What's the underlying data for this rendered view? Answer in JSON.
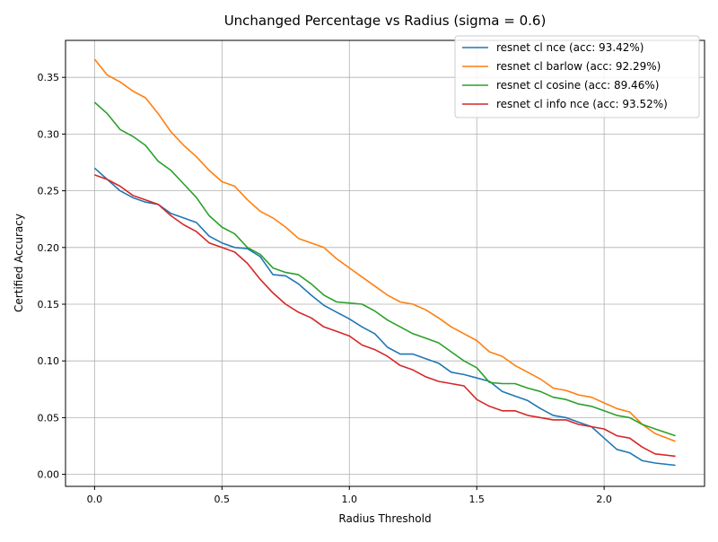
{
  "chart_data": {
    "type": "line",
    "title": "Unchanged Percentage vs Radius (sigma = 0.6)",
    "xlabel": "Radius Threshold",
    "ylabel": "Certified Accuracy",
    "xlim": [
      -0.114,
      2.394
    ],
    "ylim": [
      -0.0106,
      0.3826
    ],
    "xticks": [
      0.0,
      0.5,
      1.0,
      1.5,
      2.0
    ],
    "xtick_labels": [
      "0.0",
      "0.5",
      "1.0",
      "1.5",
      "2.0"
    ],
    "yticks": [
      0.0,
      0.05,
      0.1,
      0.15,
      0.2,
      0.25,
      0.3,
      0.35
    ],
    "ytick_labels": [
      "0.00",
      "0.05",
      "0.10",
      "0.15",
      "0.20",
      "0.25",
      "0.30",
      "0.35"
    ],
    "grid": true,
    "legend_position": "upper right",
    "series": [
      {
        "name": "resnet cl nce (acc: 93.42%)",
        "color": "#1f77b4",
        "x": [
          0.0,
          0.05,
          0.1,
          0.15,
          0.2,
          0.25,
          0.3,
          0.35,
          0.4,
          0.45,
          0.5,
          0.55,
          0.6,
          0.65,
          0.7,
          0.75,
          0.8,
          0.85,
          0.9,
          0.95,
          1.0,
          1.05,
          1.1,
          1.15,
          1.2,
          1.25,
          1.3,
          1.35,
          1.4,
          1.45,
          1.5,
          1.55,
          1.6,
          1.65,
          1.7,
          1.75,
          1.8,
          1.85,
          1.9,
          1.95,
          2.0,
          2.05,
          2.1,
          2.15,
          2.2,
          2.28
        ],
        "y": [
          0.27,
          0.26,
          0.25,
          0.244,
          0.24,
          0.238,
          0.23,
          0.226,
          0.222,
          0.21,
          0.204,
          0.2,
          0.199,
          0.192,
          0.176,
          0.175,
          0.168,
          0.158,
          0.149,
          0.143,
          0.137,
          0.13,
          0.124,
          0.112,
          0.106,
          0.106,
          0.102,
          0.098,
          0.09,
          0.088,
          0.085,
          0.082,
          0.073,
          0.069,
          0.065,
          0.058,
          0.052,
          0.05,
          0.046,
          0.042,
          0.032,
          0.022,
          0.019,
          0.012,
          0.01,
          0.008
        ]
      },
      {
        "name": "resnet cl barlow (acc: 92.29%)",
        "color": "#ff7f0e",
        "x": [
          0.0,
          0.05,
          0.1,
          0.15,
          0.2,
          0.25,
          0.3,
          0.35,
          0.4,
          0.45,
          0.5,
          0.55,
          0.6,
          0.65,
          0.7,
          0.75,
          0.8,
          0.85,
          0.9,
          0.95,
          1.0,
          1.05,
          1.1,
          1.15,
          1.2,
          1.25,
          1.3,
          1.35,
          1.4,
          1.45,
          1.5,
          1.55,
          1.6,
          1.65,
          1.7,
          1.75,
          1.8,
          1.85,
          1.9,
          1.95,
          2.0,
          2.05,
          2.1,
          2.15,
          2.2,
          2.28
        ],
        "y": [
          0.366,
          0.352,
          0.346,
          0.338,
          0.332,
          0.318,
          0.302,
          0.29,
          0.28,
          0.268,
          0.258,
          0.254,
          0.242,
          0.232,
          0.226,
          0.218,
          0.208,
          0.204,
          0.2,
          0.19,
          0.182,
          0.174,
          0.166,
          0.158,
          0.152,
          0.15,
          0.145,
          0.138,
          0.13,
          0.124,
          0.118,
          0.108,
          0.104,
          0.096,
          0.09,
          0.084,
          0.076,
          0.074,
          0.07,
          0.068,
          0.063,
          0.058,
          0.055,
          0.044,
          0.036,
          0.029
        ]
      },
      {
        "name": "resnet cl cosine (acc: 89.46%)",
        "color": "#2ca02c",
        "x": [
          0.0,
          0.05,
          0.1,
          0.15,
          0.2,
          0.25,
          0.3,
          0.35,
          0.4,
          0.45,
          0.5,
          0.55,
          0.6,
          0.65,
          0.7,
          0.75,
          0.8,
          0.85,
          0.9,
          0.95,
          1.0,
          1.05,
          1.1,
          1.15,
          1.2,
          1.25,
          1.3,
          1.35,
          1.4,
          1.45,
          1.5,
          1.55,
          1.6,
          1.65,
          1.7,
          1.75,
          1.8,
          1.85,
          1.9,
          1.95,
          2.0,
          2.05,
          2.1,
          2.15,
          2.2,
          2.28
        ],
        "y": [
          0.328,
          0.318,
          0.304,
          0.298,
          0.29,
          0.276,
          0.268,
          0.256,
          0.244,
          0.228,
          0.218,
          0.212,
          0.2,
          0.194,
          0.182,
          0.178,
          0.176,
          0.168,
          0.158,
          0.152,
          0.151,
          0.15,
          0.144,
          0.136,
          0.13,
          0.124,
          0.12,
          0.116,
          0.108,
          0.1,
          0.094,
          0.081,
          0.08,
          0.08,
          0.076,
          0.073,
          0.068,
          0.066,
          0.062,
          0.06,
          0.056,
          0.052,
          0.05,
          0.044,
          0.04,
          0.034
        ]
      },
      {
        "name": "resnet cl info nce (acc: 93.52%)",
        "color": "#d62728",
        "x": [
          0.0,
          0.05,
          0.1,
          0.15,
          0.2,
          0.25,
          0.3,
          0.35,
          0.4,
          0.45,
          0.5,
          0.55,
          0.6,
          0.65,
          0.7,
          0.75,
          0.8,
          0.85,
          0.9,
          0.95,
          1.0,
          1.05,
          1.1,
          1.15,
          1.2,
          1.25,
          1.3,
          1.35,
          1.4,
          1.45,
          1.5,
          1.55,
          1.6,
          1.65,
          1.7,
          1.75,
          1.8,
          1.85,
          1.9,
          1.95,
          2.0,
          2.05,
          2.1,
          2.15,
          2.2,
          2.28
        ],
        "y": [
          0.264,
          0.26,
          0.254,
          0.246,
          0.242,
          0.238,
          0.228,
          0.22,
          0.214,
          0.204,
          0.2,
          0.196,
          0.186,
          0.172,
          0.16,
          0.15,
          0.143,
          0.138,
          0.13,
          0.126,
          0.122,
          0.114,
          0.11,
          0.104,
          0.096,
          0.092,
          0.086,
          0.082,
          0.08,
          0.078,
          0.066,
          0.06,
          0.056,
          0.056,
          0.052,
          0.05,
          0.048,
          0.048,
          0.044,
          0.042,
          0.04,
          0.034,
          0.032,
          0.024,
          0.018,
          0.016
        ]
      }
    ]
  }
}
